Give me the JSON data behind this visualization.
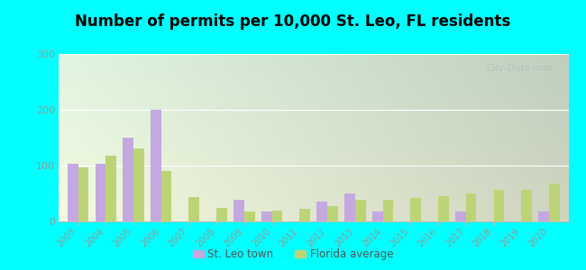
{
  "title": "Number of permits per 10,000 St. Leo, FL residents",
  "years": [
    2003,
    2004,
    2005,
    2006,
    2007,
    2008,
    2009,
    2010,
    2011,
    2012,
    2013,
    2014,
    2015,
    2016,
    2017,
    2018,
    2019,
    2020
  ],
  "st_leo": [
    103,
    103,
    150,
    200,
    0,
    0,
    38,
    18,
    0,
    35,
    50,
    18,
    0,
    0,
    18,
    0,
    0,
    18
  ],
  "florida": [
    97,
    118,
    130,
    90,
    43,
    25,
    18,
    20,
    22,
    27,
    38,
    38,
    42,
    45,
    50,
    57,
    57,
    68
  ],
  "st_leo_color": "#c4a8e0",
  "florida_color": "#bcd476",
  "bg_topleft": "#d0ead0",
  "bg_topright": "#e8f5e8",
  "bg_bottom": "#f0f5e0",
  "outer_bg": "#00ffff",
  "ylim": [
    0,
    300
  ],
  "yticks": [
    0,
    100,
    200,
    300
  ],
  "bar_width": 0.38,
  "legend_st_leo": "St. Leo town",
  "legend_florida": "Florida average"
}
